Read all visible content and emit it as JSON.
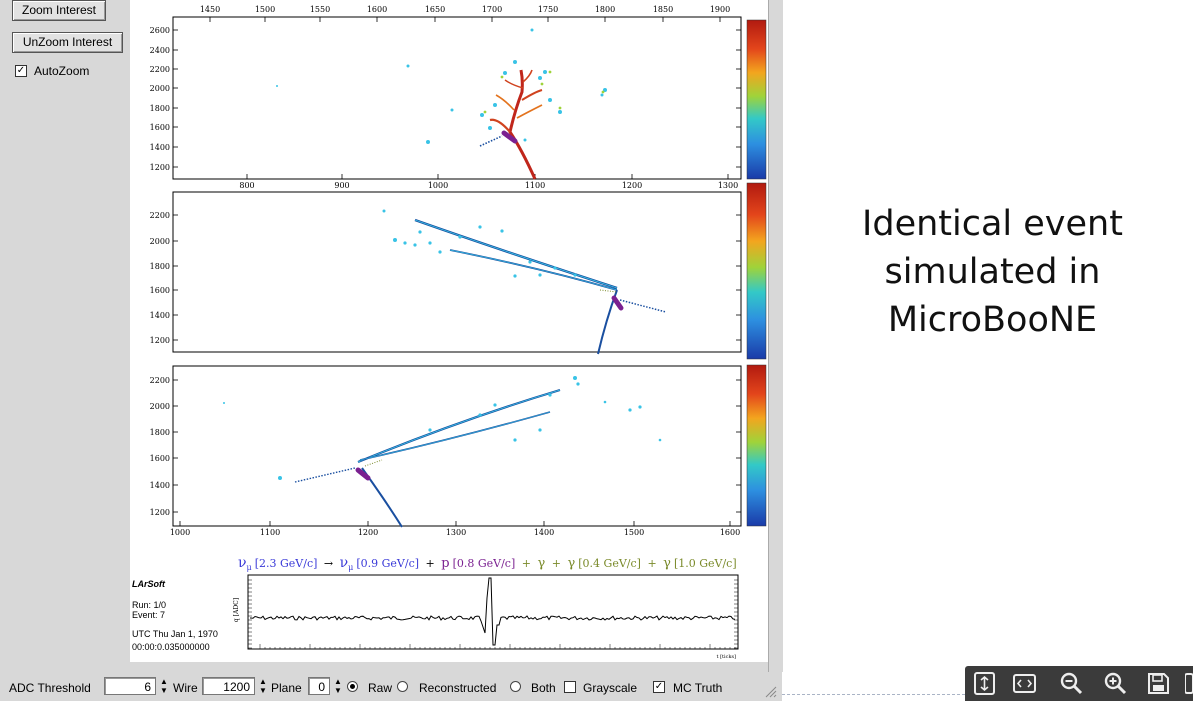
{
  "left_panel": {
    "zoom_interest_label": "Zoom Interest",
    "unzoom_interest_label": "UnZoom Interest",
    "autozoom_label": "AutoZoom",
    "autozoom_checked": true
  },
  "views": {
    "view1": {
      "x_ticks": [
        "1450",
        "1500",
        "1550",
        "1600",
        "1650",
        "1700",
        "1750",
        "1800",
        "1850",
        "1900"
      ],
      "y_ticks": [
        "2600",
        "2400",
        "2200",
        "2000",
        "1800",
        "1600",
        "1400",
        "1200"
      ]
    },
    "view2": {
      "x_ticks": [
        "800",
        "900",
        "1000",
        "1100",
        "1200",
        "1300"
      ],
      "y_ticks": [
        "2200",
        "2000",
        "1800",
        "1600",
        "1400",
        "1200"
      ]
    },
    "view3": {
      "x_ticks": [
        "1000",
        "1100",
        "1200",
        "1300",
        "1400",
        "1500",
        "1600"
      ],
      "y_ticks": [
        "2200",
        "2000",
        "1800",
        "1600",
        "1400",
        "1200"
      ]
    }
  },
  "truth_line": {
    "nu_mu_in": "ν",
    "sub_mu": "μ",
    "nu_mu_in_momentum": "[2.3 GeV/c]",
    "arrow": "→",
    "nu_mu_out": "ν",
    "nu_mu_out_momentum": "[0.9 GeV/c]",
    "plus": "+",
    "proton": "p",
    "proton_momentum": "[0.8 GeV/c]",
    "gamma": "γ",
    "gamma1_momentum": "[0.4 GeV/c]",
    "gamma2_momentum": "[1.0 GeV/c]"
  },
  "event_info": {
    "software": "LArSoft",
    "run": "Run:   1/0",
    "event": "Event: 7",
    "utc": "UTC Thu Jan 1, 1970",
    "time": "00:00:0.035000000"
  },
  "waveform": {
    "ylabel": "q [ADC]",
    "xlabel": "t [ticks]"
  },
  "bottom_bar": {
    "adc_threshold_label": "ADC Threshold",
    "adc_threshold_value": "6",
    "wire_label": "Wire",
    "wire_value": "1200",
    "plane_label": "Plane",
    "plane_value": "0",
    "raw_label": "Raw",
    "reconstructed_label": "Reconstructed",
    "both_label": "Both",
    "grayscale_label": "Grayscale",
    "mc_truth_label": "MC Truth",
    "raw_selected": true,
    "grayscale_checked": false,
    "mc_truth_checked": true
  },
  "slide_text": {
    "line1": "Identical event",
    "line2": "simulated in",
    "line3": "MicroBooNE"
  },
  "toolbar": {
    "icons": [
      "fit-page-icon",
      "fit-width-icon",
      "zoom-out-icon",
      "zoom-in-icon",
      "save-icon"
    ]
  },
  "colors": {
    "track_blue": "#1a4fa0",
    "shower_cyan": "#39c3e6",
    "hot_red": "#c0261b",
    "proton_purple": "#7a2090",
    "truth_blue": "#3a3ad8",
    "truth_olive": "#7a8a2a"
  }
}
